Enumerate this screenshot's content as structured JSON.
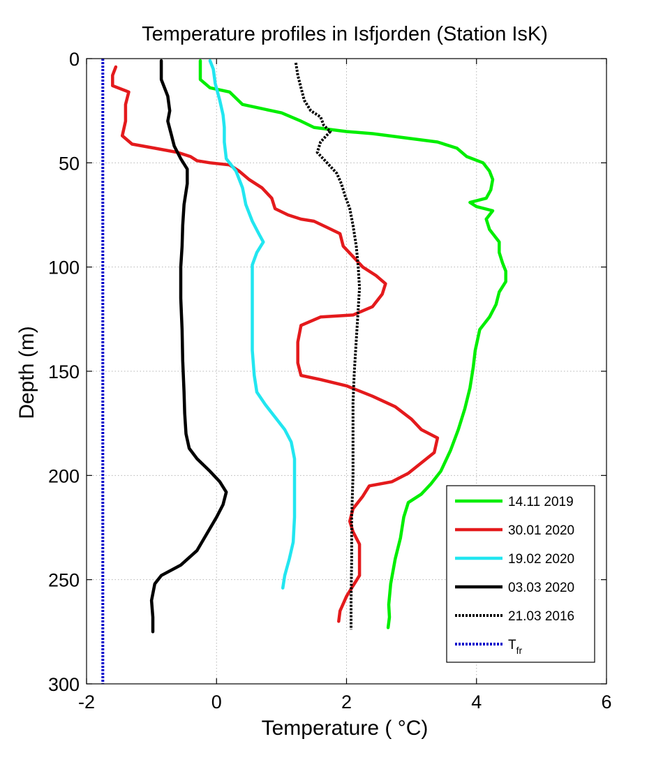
{
  "chart_data": {
    "type": "line",
    "title": "Temperature profiles in Isfjorden (Station IsK)",
    "xlabel": "Temperature ( °C)",
    "ylabel": "Depth (m)",
    "xlim": [
      -2,
      6
    ],
    "ylim": [
      0,
      300
    ],
    "y_inverted": true,
    "grid": true,
    "legend_position": "bottom-right",
    "xticks": [
      -2,
      0,
      2,
      4,
      6
    ],
    "yticks": [
      0,
      50,
      100,
      150,
      200,
      250,
      300
    ],
    "series": [
      {
        "name": "14.11 2019",
        "color": "#00ee00",
        "style": "solid",
        "points": [
          [
            -0.25,
            1
          ],
          [
            -0.25,
            10
          ],
          [
            -0.1,
            14
          ],
          [
            0.2,
            16
          ],
          [
            0.3,
            19
          ],
          [
            0.4,
            22
          ],
          [
            0.7,
            24
          ],
          [
            1.0,
            26
          ],
          [
            1.3,
            30
          ],
          [
            1.5,
            33
          ],
          [
            2.0,
            35
          ],
          [
            2.4,
            36
          ],
          [
            2.9,
            38
          ],
          [
            3.4,
            40
          ],
          [
            3.7,
            43
          ],
          [
            3.85,
            47
          ],
          [
            4.1,
            50
          ],
          [
            4.2,
            54
          ],
          [
            4.25,
            58
          ],
          [
            4.22,
            63
          ],
          [
            4.15,
            67
          ],
          [
            3.9,
            69
          ],
          [
            4.0,
            71
          ],
          [
            4.25,
            73
          ],
          [
            4.15,
            77
          ],
          [
            4.2,
            82
          ],
          [
            4.35,
            88
          ],
          [
            4.35,
            93
          ],
          [
            4.4,
            98
          ],
          [
            4.45,
            102
          ],
          [
            4.45,
            107
          ],
          [
            4.35,
            112
          ],
          [
            4.3,
            118
          ],
          [
            4.2,
            124
          ],
          [
            4.05,
            130
          ],
          [
            3.98,
            140
          ],
          [
            3.95,
            148
          ],
          [
            3.9,
            158
          ],
          [
            3.82,
            168
          ],
          [
            3.72,
            178
          ],
          [
            3.6,
            188
          ],
          [
            3.45,
            198
          ],
          [
            3.3,
            204
          ],
          [
            3.15,
            209
          ],
          [
            2.95,
            213
          ],
          [
            2.88,
            220
          ],
          [
            2.83,
            230
          ],
          [
            2.75,
            240
          ],
          [
            2.68,
            252
          ],
          [
            2.65,
            262
          ],
          [
            2.66,
            268
          ],
          [
            2.64,
            273
          ]
        ]
      },
      {
        "name": "30.01 2020",
        "color": "#e41a1c",
        "style": "solid",
        "points": [
          [
            -1.55,
            4
          ],
          [
            -1.6,
            8
          ],
          [
            -1.6,
            13
          ],
          [
            -1.35,
            16
          ],
          [
            -1.4,
            22
          ],
          [
            -1.4,
            30
          ],
          [
            -1.45,
            37
          ],
          [
            -1.3,
            41
          ],
          [
            -0.95,
            43
          ],
          [
            -0.6,
            45
          ],
          [
            -0.4,
            47
          ],
          [
            -0.3,
            49
          ],
          [
            -0.1,
            50
          ],
          [
            0.2,
            51
          ],
          [
            0.35,
            54
          ],
          [
            0.5,
            58
          ],
          [
            0.7,
            62
          ],
          [
            0.85,
            67
          ],
          [
            0.9,
            72
          ],
          [
            1.1,
            75
          ],
          [
            1.3,
            77
          ],
          [
            1.5,
            78
          ],
          [
            1.7,
            81
          ],
          [
            1.9,
            84
          ],
          [
            1.95,
            90
          ],
          [
            2.1,
            95
          ],
          [
            2.25,
            100
          ],
          [
            2.45,
            104
          ],
          [
            2.6,
            108
          ],
          [
            2.55,
            113
          ],
          [
            2.4,
            119
          ],
          [
            2.1,
            123
          ],
          [
            1.6,
            124
          ],
          [
            1.3,
            128
          ],
          [
            1.25,
            136
          ],
          [
            1.25,
            146
          ],
          [
            1.3,
            152
          ],
          [
            1.6,
            154
          ],
          [
            2.0,
            157
          ],
          [
            2.4,
            162
          ],
          [
            2.75,
            167
          ],
          [
            3.0,
            173
          ],
          [
            3.15,
            178
          ],
          [
            3.4,
            182
          ],
          [
            3.35,
            189
          ],
          [
            3.15,
            194
          ],
          [
            2.95,
            199
          ],
          [
            2.7,
            203
          ],
          [
            2.35,
            205
          ],
          [
            2.25,
            210
          ],
          [
            2.1,
            216
          ],
          [
            2.05,
            222
          ],
          [
            2.1,
            227
          ],
          [
            2.2,
            233
          ],
          [
            2.2,
            240
          ],
          [
            2.2,
            248
          ],
          [
            2.1,
            253
          ],
          [
            2.0,
            258
          ],
          [
            1.9,
            265
          ],
          [
            1.88,
            270
          ]
        ]
      },
      {
        "name": "19.02 2020",
        "color": "#22e6f0",
        "style": "solid",
        "points": [
          [
            -0.1,
            1
          ],
          [
            -0.05,
            5
          ],
          [
            -0.02,
            12
          ],
          [
            0.05,
            20
          ],
          [
            0.1,
            27
          ],
          [
            0.12,
            33
          ],
          [
            0.12,
            40
          ],
          [
            0.15,
            48
          ],
          [
            0.3,
            54
          ],
          [
            0.4,
            62
          ],
          [
            0.45,
            70
          ],
          [
            0.55,
            78
          ],
          [
            0.65,
            84
          ],
          [
            0.72,
            88
          ],
          [
            0.62,
            93
          ],
          [
            0.55,
            99
          ],
          [
            0.55,
            110
          ],
          [
            0.55,
            125
          ],
          [
            0.55,
            140
          ],
          [
            0.58,
            152
          ],
          [
            0.62,
            160
          ],
          [
            0.75,
            166
          ],
          [
            0.9,
            172
          ],
          [
            1.05,
            178
          ],
          [
            1.15,
            184
          ],
          [
            1.2,
            192
          ],
          [
            1.2,
            205
          ],
          [
            1.2,
            220
          ],
          [
            1.18,
            232
          ],
          [
            1.12,
            240
          ],
          [
            1.05,
            248
          ],
          [
            1.02,
            254
          ]
        ]
      },
      {
        "name": "03.03 2020",
        "color": "#000000",
        "style": "solid",
        "points": [
          [
            -0.85,
            1
          ],
          [
            -0.85,
            10
          ],
          [
            -0.75,
            18
          ],
          [
            -0.72,
            25
          ],
          [
            -0.75,
            30
          ],
          [
            -0.7,
            36
          ],
          [
            -0.65,
            42
          ],
          [
            -0.55,
            48
          ],
          [
            -0.45,
            53
          ],
          [
            -0.45,
            60
          ],
          [
            -0.5,
            70
          ],
          [
            -0.52,
            80
          ],
          [
            -0.53,
            90
          ],
          [
            -0.55,
            100
          ],
          [
            -0.55,
            115
          ],
          [
            -0.53,
            130
          ],
          [
            -0.52,
            145
          ],
          [
            -0.5,
            160
          ],
          [
            -0.49,
            170
          ],
          [
            -0.47,
            180
          ],
          [
            -0.42,
            187
          ],
          [
            -0.3,
            192
          ],
          [
            -0.1,
            198
          ],
          [
            0.05,
            203
          ],
          [
            0.15,
            208
          ],
          [
            0.1,
            214
          ],
          [
            0.0,
            220
          ],
          [
            -0.15,
            228
          ],
          [
            -0.3,
            236
          ],
          [
            -0.55,
            243
          ],
          [
            -0.85,
            248
          ],
          [
            -0.95,
            252
          ],
          [
            -1.0,
            260
          ],
          [
            -0.98,
            268
          ],
          [
            -0.98,
            275
          ]
        ]
      },
      {
        "name": "21.03 2016",
        "color": "#000000",
        "style": "dotted",
        "points": [
          [
            1.22,
            2
          ],
          [
            1.25,
            8
          ],
          [
            1.3,
            14
          ],
          [
            1.35,
            20
          ],
          [
            1.45,
            25
          ],
          [
            1.6,
            28
          ],
          [
            1.65,
            32
          ],
          [
            1.75,
            35
          ],
          [
            1.6,
            40
          ],
          [
            1.55,
            45
          ],
          [
            1.7,
            50
          ],
          [
            1.85,
            55
          ],
          [
            1.92,
            60
          ],
          [
            1.98,
            66
          ],
          [
            2.05,
            72
          ],
          [
            2.1,
            80
          ],
          [
            2.15,
            90
          ],
          [
            2.18,
            100
          ],
          [
            2.2,
            110
          ],
          [
            2.18,
            120
          ],
          [
            2.15,
            135
          ],
          [
            2.12,
            150
          ],
          [
            2.1,
            165
          ],
          [
            2.1,
            180
          ],
          [
            2.1,
            200
          ],
          [
            2.08,
            220
          ],
          [
            2.08,
            240
          ],
          [
            2.07,
            260
          ],
          [
            2.07,
            274
          ]
        ]
      },
      {
        "name": "T",
        "name_subscript": "fr",
        "color": "#0000cc",
        "style": "dotted",
        "points": [
          [
            -1.75,
            0
          ],
          [
            -1.75,
            300
          ]
        ]
      }
    ]
  }
}
